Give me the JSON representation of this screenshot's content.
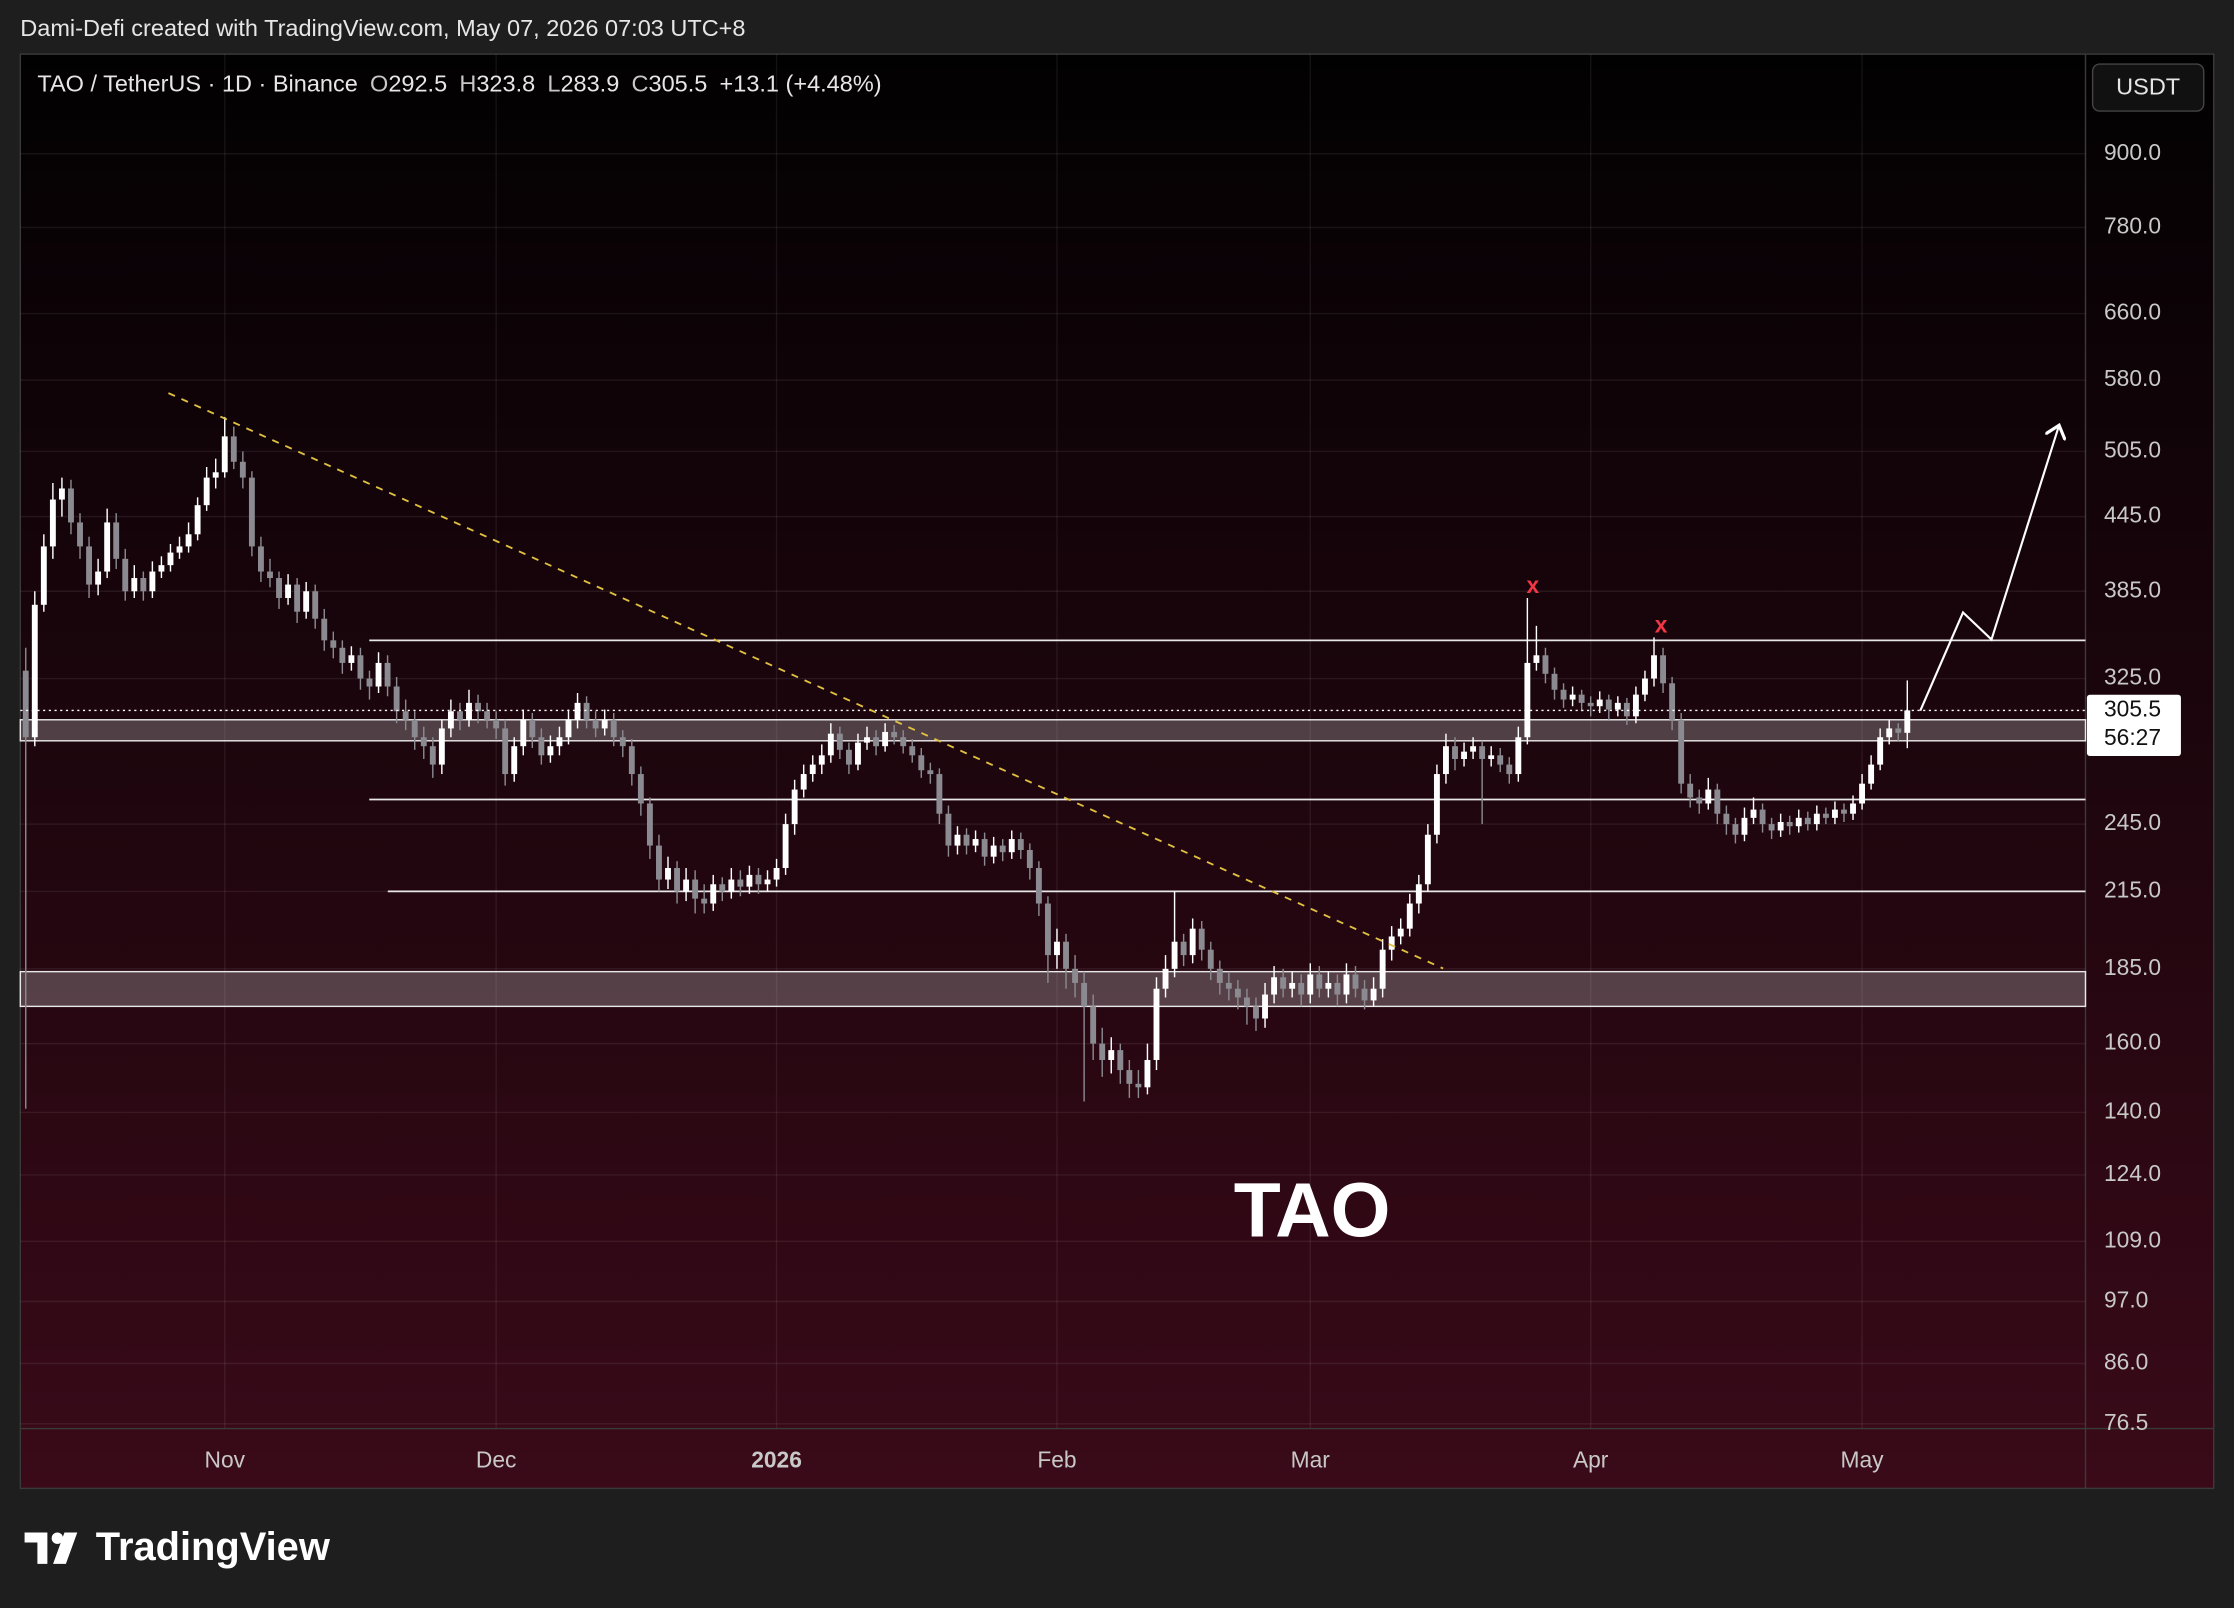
{
  "chart_data": {
    "type": "candlestick",
    "attribution": "Dami-Defi created with TradingView.com, May 07, 2026 07:03 UTC+8",
    "symbol": "TAO / TetherUS · 1D · Binance",
    "ohlc_keys": [
      "O",
      "H",
      "L",
      "C"
    ],
    "change": "+13.1 (+4.48%)",
    "currency": "USDT",
    "countdown": "56:27",
    "label": "TAO",
    "markers": [
      "x",
      "x"
    ],
    "brand": "TradingView",
    "log_scale": true,
    "grid": true,
    "up_color": "#ffffff",
    "down_color": "#8a8a90",
    "level_color": "#e8e8e8",
    "trend_color": "#e0c040",
    "marker_color": "#f23645",
    "levels": [
      350,
      257,
      215
    ],
    "zones": [
      [
        288,
        300
      ],
      [
        172,
        184
      ]
    ],
    "xlim": [
      -0.6,
      227.7
    ],
    "xticks": [
      {
        "value": 22,
        "label": "Nov"
      },
      {
        "value": 52,
        "label": "Dec"
      },
      {
        "value": 83,
        "label": "2026"
      },
      {
        "value": 114,
        "label": "Feb"
      },
      {
        "value": 142,
        "label": "Mar"
      },
      {
        "value": 173,
        "label": "Apr"
      },
      {
        "value": 203,
        "label": "May"
      }
    ],
    "ylim": [
      75.8,
      1092
    ],
    "yticks": [
      {
        "value": 900,
        "label": "900.0"
      },
      {
        "value": 780,
        "label": "780.0"
      },
      {
        "value": 660,
        "label": "660.0"
      },
      {
        "value": 580,
        "label": "580.0"
      },
      {
        "value": 505,
        "label": "505.0"
      },
      {
        "value": 445,
        "label": "445.0"
      },
      {
        "value": 385,
        "label": "385.0"
      },
      {
        "value": 325,
        "label": "325.0"
      },
      {
        "value": 245,
        "label": "245.0"
      },
      {
        "value": 215,
        "label": "215.0"
      },
      {
        "value": 185,
        "label": "185.0"
      },
      {
        "value": 160,
        "label": "160.0"
      },
      {
        "value": 140,
        "label": "140.0"
      },
      {
        "value": 124,
        "label": "124.0"
      },
      {
        "value": 109,
        "label": "109.0"
      },
      {
        "value": 97,
        "label": "97.0"
      },
      {
        "value": 86,
        "label": "86.0"
      },
      76.5
    ],
    "ohlc": [
      [
        330,
        345,
        141,
        290
      ],
      [
        290,
        385,
        285,
        375
      ],
      [
        375,
        430,
        370,
        420
      ],
      [
        420,
        475,
        410,
        460
      ],
      [
        460,
        480,
        445,
        470
      ],
      [
        470,
        478,
        430,
        440
      ],
      [
        440,
        448,
        410,
        420
      ],
      [
        420,
        428,
        380,
        390
      ],
      [
        390,
        410,
        382,
        400
      ],
      [
        400,
        452,
        395,
        440
      ],
      [
        440,
        448,
        402,
        410
      ],
      [
        410,
        418,
        378,
        385
      ],
      [
        385,
        405,
        380,
        395
      ],
      [
        395,
        400,
        378,
        385
      ],
      [
        385,
        408,
        380,
        400
      ],
      [
        400,
        412,
        395,
        405
      ],
      [
        405,
        422,
        400,
        415
      ],
      [
        415,
        428,
        410,
        420
      ],
      [
        420,
        440,
        415,
        430
      ],
      [
        430,
        462,
        425,
        455
      ],
      [
        455,
        490,
        450,
        480
      ],
      [
        480,
        498,
        470,
        485
      ],
      [
        485,
        540,
        480,
        520
      ],
      [
        520,
        530,
        488,
        495
      ],
      [
        495,
        505,
        470,
        480
      ],
      [
        480,
        486,
        412,
        420
      ],
      [
        420,
        428,
        392,
        400
      ],
      [
        400,
        410,
        388,
        395
      ],
      [
        395,
        400,
        372,
        380
      ],
      [
        380,
        398,
        375,
        390
      ],
      [
        390,
        395,
        362,
        370
      ],
      [
        370,
        392,
        365,
        385
      ],
      [
        385,
        390,
        358,
        365
      ],
      [
        365,
        372,
        343,
        350
      ],
      [
        350,
        356,
        338,
        345
      ],
      [
        345,
        350,
        328,
        335
      ],
      [
        335,
        346,
        330,
        340
      ],
      [
        340,
        345,
        318,
        325
      ],
      [
        325,
        330,
        312,
        320
      ],
      [
        320,
        342,
        316,
        335
      ],
      [
        335,
        340,
        314,
        320
      ],
      [
        320,
        326,
        298,
        305
      ],
      [
        305,
        312,
        294,
        300
      ],
      [
        300,
        305,
        283,
        290
      ],
      [
        290,
        296,
        278,
        285
      ],
      [
        285,
        290,
        268,
        275
      ],
      [
        275,
        300,
        270,
        295
      ],
      [
        295,
        312,
        290,
        305
      ],
      [
        305,
        310,
        294,
        300
      ],
      [
        300,
        318,
        296,
        310
      ],
      [
        310,
        315,
        298,
        305
      ],
      [
        305,
        310,
        295,
        300
      ],
      [
        300,
        305,
        289,
        295
      ],
      [
        295,
        300,
        264,
        270
      ],
      [
        270,
        290,
        266,
        285
      ],
      [
        285,
        306,
        280,
        300
      ],
      [
        300,
        304,
        284,
        290
      ],
      [
        290,
        295,
        275,
        280
      ],
      [
        280,
        291,
        276,
        285
      ],
      [
        285,
        296,
        280,
        290
      ],
      [
        290,
        306,
        286,
        300
      ],
      [
        300,
        316,
        295,
        310
      ],
      [
        310,
        314,
        295,
        300
      ],
      [
        300,
        305,
        290,
        295
      ],
      [
        295,
        306,
        291,
        300
      ],
      [
        300,
        304,
        285,
        290
      ],
      [
        290,
        294,
        279,
        285
      ],
      [
        285,
        289,
        264,
        270
      ],
      [
        270,
        274,
        249,
        255
      ],
      [
        255,
        258,
        229,
        235
      ],
      [
        235,
        240,
        215,
        220
      ],
      [
        220,
        230,
        216,
        225
      ],
      [
        225,
        228,
        210,
        215
      ],
      [
        215,
        225,
        211,
        220
      ],
      [
        220,
        224,
        206,
        212
      ],
      [
        212,
        218,
        206,
        210
      ],
      [
        210,
        222,
        207,
        218
      ],
      [
        218,
        221,
        211,
        215
      ],
      [
        215,
        225,
        212,
        220
      ],
      [
        220,
        224,
        213,
        217
      ],
      [
        217,
        226,
        214,
        222
      ],
      [
        222,
        225,
        214,
        218
      ],
      [
        218,
        224,
        215,
        220
      ],
      [
        220,
        229,
        217,
        225
      ],
      [
        225,
        250,
        222,
        245
      ],
      [
        245,
        267,
        240,
        262
      ],
      [
        262,
        275,
        258,
        270
      ],
      [
        270,
        280,
        266,
        275
      ],
      [
        275,
        286,
        270,
        280
      ],
      [
        280,
        298,
        276,
        292
      ],
      [
        292,
        296,
        278,
        283
      ],
      [
        283,
        287,
        270,
        275
      ],
      [
        275,
        292,
        272,
        287
      ],
      [
        287,
        296,
        283,
        290
      ],
      [
        290,
        294,
        280,
        285
      ],
      [
        285,
        298,
        282,
        293
      ],
      [
        293,
        297,
        286,
        290
      ],
      [
        290,
        294,
        281,
        285
      ],
      [
        285,
        289,
        276,
        280
      ],
      [
        280,
        284,
        268,
        272
      ],
      [
        272,
        276,
        265,
        270
      ],
      [
        270,
        273,
        245,
        250
      ],
      [
        250,
        254,
        230,
        235
      ],
      [
        235,
        244,
        231,
        240
      ],
      [
        240,
        243,
        231,
        235
      ],
      [
        235,
        242,
        232,
        238
      ],
      [
        238,
        241,
        226,
        230
      ],
      [
        230,
        239,
        227,
        235
      ],
      [
        235,
        238,
        228,
        232
      ],
      [
        232,
        242,
        229,
        238
      ],
      [
        238,
        241,
        229,
        233
      ],
      [
        233,
        236,
        220,
        225
      ],
      [
        225,
        228,
        205,
        210
      ],
      [
        210,
        213,
        180,
        190
      ],
      [
        190,
        200,
        185,
        195
      ],
      [
        195,
        198,
        178,
        185
      ],
      [
        185,
        190,
        175,
        180
      ],
      [
        180,
        184,
        143,
        172
      ],
      [
        172,
        176,
        155,
        160
      ],
      [
        160,
        165,
        150,
        155
      ],
      [
        155,
        162,
        151,
        158
      ],
      [
        158,
        160,
        148,
        152
      ],
      [
        152,
        155,
        144,
        148
      ],
      [
        148,
        152,
        144,
        147
      ],
      [
        147,
        160,
        145,
        155
      ],
      [
        155,
        182,
        152,
        178
      ],
      [
        178,
        190,
        175,
        185
      ],
      [
        185,
        215,
        182,
        195
      ],
      [
        195,
        198,
        186,
        190
      ],
      [
        190,
        204,
        187,
        200
      ],
      [
        200,
        203,
        188,
        192
      ],
      [
        192,
        195,
        181,
        185
      ],
      [
        185,
        188,
        176,
        180
      ],
      [
        180,
        184,
        174,
        178
      ],
      [
        178,
        181,
        171,
        175
      ],
      [
        175,
        178,
        166,
        172
      ],
      [
        172,
        175,
        164,
        168
      ],
      [
        168,
        180,
        165,
        176
      ],
      [
        176,
        186,
        173,
        182
      ],
      [
        182,
        185,
        175,
        178
      ],
      [
        178,
        184,
        175,
        180
      ],
      [
        180,
        183,
        172,
        176
      ],
      [
        176,
        187,
        173,
        183
      ],
      [
        183,
        186,
        175,
        178
      ],
      [
        178,
        184,
        175,
        180
      ],
      [
        180,
        183,
        172,
        176
      ],
      [
        176,
        187,
        173,
        183
      ],
      [
        183,
        186,
        175,
        178
      ],
      [
        178,
        181,
        171,
        174
      ],
      [
        174,
        182,
        172,
        178
      ],
      [
        178,
        196,
        175,
        192
      ],
      [
        192,
        201,
        188,
        197
      ],
      [
        197,
        204,
        194,
        200
      ],
      [
        200,
        214,
        197,
        210
      ],
      [
        210,
        222,
        206,
        218
      ],
      [
        218,
        245,
        215,
        240
      ],
      [
        240,
        275,
        236,
        270
      ],
      [
        270,
        292,
        265,
        285
      ],
      [
        285,
        290,
        272,
        278
      ],
      [
        278,
        287,
        274,
        282
      ],
      [
        282,
        290,
        278,
        285
      ],
      [
        285,
        288,
        245,
        278
      ],
      [
        278,
        285,
        274,
        280
      ],
      [
        280,
        284,
        271,
        275
      ],
      [
        275,
        279,
        265,
        270
      ],
      [
        270,
        296,
        266,
        290
      ],
      [
        290,
        380,
        286,
        335
      ],
      [
        335,
        360,
        330,
        340
      ],
      [
        340,
        345,
        322,
        328
      ],
      [
        328,
        332,
        312,
        318
      ],
      [
        318,
        322,
        307,
        312
      ],
      [
        312,
        320,
        308,
        315
      ],
      [
        315,
        318,
        305,
        310
      ],
      [
        310,
        314,
        302,
        308
      ],
      [
        308,
        317,
        304,
        312
      ],
      [
        312,
        315,
        300,
        306
      ],
      [
        306,
        314,
        302,
        310
      ],
      [
        310,
        313,
        297,
        302
      ],
      [
        302,
        320,
        298,
        315
      ],
      [
        315,
        330,
        311,
        325
      ],
      [
        325,
        352,
        320,
        340
      ],
      [
        340,
        345,
        316,
        322
      ],
      [
        322,
        326,
        294,
        300
      ],
      [
        300,
        304,
        260,
        265
      ],
      [
        265,
        270,
        253,
        258
      ],
      [
        258,
        262,
        250,
        255
      ],
      [
        255,
        268,
        252,
        262
      ],
      [
        262,
        265,
        245,
        250
      ],
      [
        250,
        254,
        240,
        245
      ],
      [
        245,
        248,
        236,
        240
      ],
      [
        240,
        253,
        237,
        248
      ],
      [
        248,
        258,
        245,
        252
      ],
      [
        252,
        255,
        241,
        245
      ],
      [
        245,
        248,
        238,
        242
      ],
      [
        242,
        250,
        239,
        246
      ],
      [
        246,
        249,
        240,
        244
      ],
      [
        244,
        252,
        241,
        248
      ],
      [
        248,
        251,
        242,
        245
      ],
      [
        245,
        254,
        242,
        250
      ],
      [
        250,
        253,
        245,
        248
      ],
      [
        248,
        256,
        245,
        252
      ],
      [
        252,
        255,
        246,
        250
      ],
      [
        250,
        259,
        247,
        255
      ],
      [
        255,
        270,
        252,
        265
      ],
      [
        265,
        280,
        262,
        275
      ],
      [
        275,
        295,
        272,
        290
      ],
      [
        290,
        300,
        286,
        295
      ],
      [
        295,
        298,
        288,
        292.5
      ],
      [
        292.5,
        323.8,
        283.9,
        305.5
      ]
    ]
  }
}
